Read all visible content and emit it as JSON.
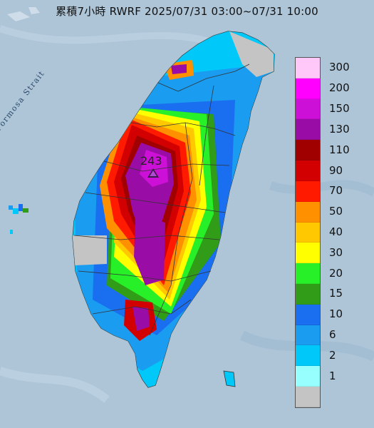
{
  "title": "累積7小時 RWRF 2025/07/31 03:00~07/31 10:00",
  "sea_label": "Formosa Strait",
  "peak": {
    "value": "243",
    "icon": "triangle-marker-icon"
  },
  "legend": {
    "levels": [
      {
        "label": "300",
        "color": "#ffc8f8"
      },
      {
        "label": "200",
        "color": "#ff00ff"
      },
      {
        "label": "150",
        "color": "#cc10d8"
      },
      {
        "label": "130",
        "color": "#9a0ca6"
      },
      {
        "label": "110",
        "color": "#a00000"
      },
      {
        "label": "90",
        "color": "#d20000"
      },
      {
        "label": "70",
        "color": "#ff1a00"
      },
      {
        "label": "50",
        "color": "#ff9000"
      },
      {
        "label": "40",
        "color": "#ffc800"
      },
      {
        "label": "30",
        "color": "#ffff00"
      },
      {
        "label": "20",
        "color": "#28f028"
      },
      {
        "label": "15",
        "color": "#309c18"
      },
      {
        "label": "10",
        "color": "#1a6ef0"
      },
      {
        "label": "6",
        "color": "#1a9cf0"
      },
      {
        "label": "2",
        "color": "#00c8f8"
      },
      {
        "label": "1",
        "color": "#98ffff"
      },
      {
        "label": "",
        "color": "#c4c4c4"
      }
    ]
  }
}
